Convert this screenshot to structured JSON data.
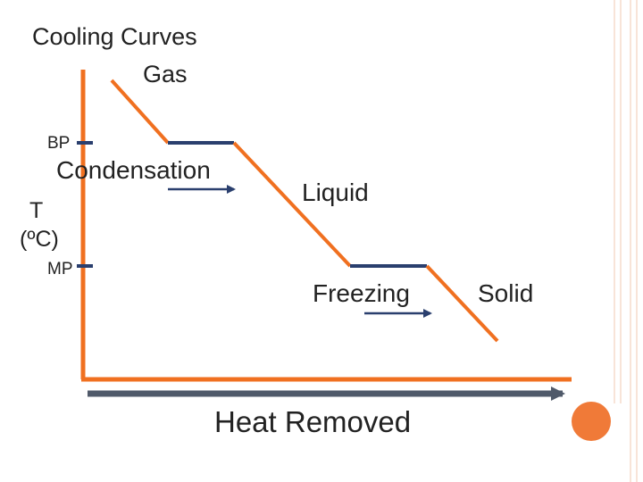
{
  "title": "Cooling Curves",
  "phases": {
    "gas": "Gas",
    "liquid": "Liquid",
    "solid": "Solid"
  },
  "transitions": {
    "condensation": "Condensation",
    "freezing": "Freezing"
  },
  "axes": {
    "y_label": "T",
    "y_unit": "(ºC)",
    "x_label": "Heat Removed",
    "bp_label": "BP",
    "mp_label": "MP"
  },
  "colors": {
    "axis": "#f07020",
    "curve": "#f07020",
    "plateau": "#2a3f6e",
    "x_arrow": "#505a6a",
    "border": "#f2c9b0",
    "circle": "#f07a38"
  }
}
